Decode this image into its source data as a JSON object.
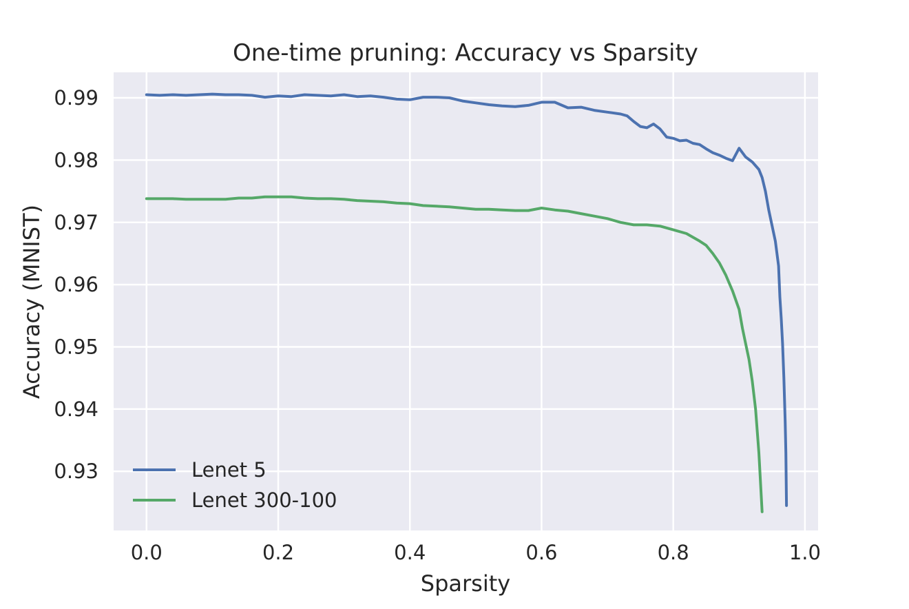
{
  "chart_data": {
    "type": "line",
    "title": "One-time pruning: Accuracy vs Sparsity",
    "xlabel": "Sparsity",
    "ylabel": "Accuracy (MNIST)",
    "xlim": [
      -0.05,
      1.02
    ],
    "ylim": [
      0.9205,
      0.9941
    ],
    "xticks": [
      0.0,
      0.2,
      0.4,
      0.6,
      0.8,
      1.0
    ],
    "xtick_labels": [
      "0.0",
      "0.2",
      "0.4",
      "0.6",
      "0.8",
      "1.0"
    ],
    "yticks": [
      0.93,
      0.94,
      0.95,
      0.96,
      0.97,
      0.98,
      0.99
    ],
    "ytick_labels": [
      "0.93",
      "0.94",
      "0.95",
      "0.96",
      "0.97",
      "0.98",
      "0.99"
    ],
    "grid": true,
    "legend_position": "lower-left",
    "background_color": "#eaeaf2",
    "grid_color": "#ffffff",
    "series": [
      {
        "name": "Lenet 5",
        "color": "#4c72b0",
        "x": [
          0.0,
          0.02,
          0.04,
          0.06,
          0.08,
          0.1,
          0.12,
          0.14,
          0.16,
          0.18,
          0.2,
          0.22,
          0.24,
          0.26,
          0.28,
          0.3,
          0.32,
          0.34,
          0.36,
          0.38,
          0.4,
          0.42,
          0.44,
          0.46,
          0.48,
          0.5,
          0.52,
          0.54,
          0.56,
          0.58,
          0.6,
          0.62,
          0.64,
          0.66,
          0.68,
          0.7,
          0.72,
          0.73,
          0.74,
          0.75,
          0.76,
          0.77,
          0.78,
          0.79,
          0.8,
          0.81,
          0.82,
          0.83,
          0.84,
          0.85,
          0.86,
          0.87,
          0.88,
          0.89,
          0.9,
          0.91,
          0.92,
          0.93,
          0.935,
          0.94,
          0.945,
          0.95,
          0.955,
          0.96,
          0.962,
          0.964,
          0.966,
          0.968,
          0.97,
          0.971,
          0.972
        ],
        "y": [
          0.9905,
          0.9904,
          0.9905,
          0.9904,
          0.9905,
          0.9906,
          0.9905,
          0.9905,
          0.9904,
          0.9901,
          0.9903,
          0.9902,
          0.9905,
          0.9904,
          0.9903,
          0.9905,
          0.9902,
          0.9903,
          0.9901,
          0.9898,
          0.9897,
          0.9901,
          0.9901,
          0.99,
          0.9895,
          0.9892,
          0.9889,
          0.9887,
          0.9886,
          0.9888,
          0.9893,
          0.9893,
          0.9884,
          0.9885,
          0.988,
          0.9877,
          0.9874,
          0.9871,
          0.9862,
          0.9854,
          0.9852,
          0.9858,
          0.985,
          0.9837,
          0.9835,
          0.9831,
          0.9832,
          0.9827,
          0.9825,
          0.9818,
          0.9812,
          0.9808,
          0.9803,
          0.9799,
          0.9819,
          0.9805,
          0.9797,
          0.9785,
          0.9772,
          0.975,
          0.972,
          0.9695,
          0.967,
          0.963,
          0.958,
          0.9545,
          0.9505,
          0.945,
          0.938,
          0.933,
          0.9245
        ]
      },
      {
        "name": "Lenet 300-100",
        "color": "#55a868",
        "x": [
          0.0,
          0.02,
          0.04,
          0.06,
          0.08,
          0.1,
          0.12,
          0.14,
          0.16,
          0.18,
          0.2,
          0.22,
          0.24,
          0.26,
          0.28,
          0.3,
          0.32,
          0.34,
          0.36,
          0.38,
          0.4,
          0.42,
          0.44,
          0.46,
          0.48,
          0.5,
          0.52,
          0.54,
          0.56,
          0.58,
          0.6,
          0.62,
          0.64,
          0.66,
          0.68,
          0.7,
          0.72,
          0.74,
          0.76,
          0.78,
          0.8,
          0.82,
          0.84,
          0.85,
          0.86,
          0.87,
          0.88,
          0.89,
          0.9,
          0.905,
          0.91,
          0.915,
          0.92,
          0.925,
          0.93,
          0.935
        ],
        "y": [
          0.9738,
          0.9738,
          0.9738,
          0.9737,
          0.9737,
          0.9737,
          0.9737,
          0.9739,
          0.9739,
          0.9741,
          0.9741,
          0.9741,
          0.9739,
          0.9738,
          0.9738,
          0.9737,
          0.9735,
          0.9734,
          0.9733,
          0.9731,
          0.973,
          0.9727,
          0.9726,
          0.9725,
          0.9723,
          0.9721,
          0.9721,
          0.972,
          0.9719,
          0.9719,
          0.9723,
          0.972,
          0.9718,
          0.9714,
          0.971,
          0.9706,
          0.97,
          0.9696,
          0.9696,
          0.9694,
          0.9688,
          0.9682,
          0.967,
          0.9663,
          0.965,
          0.9635,
          0.9615,
          0.959,
          0.956,
          0.953,
          0.9505,
          0.948,
          0.9445,
          0.94,
          0.933,
          0.9235
        ]
      }
    ]
  }
}
